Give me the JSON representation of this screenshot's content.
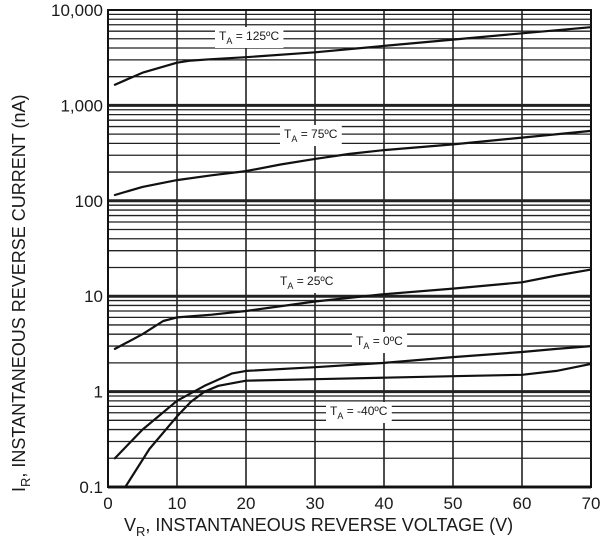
{
  "chart_data": {
    "type": "line",
    "xlabel_main": "V",
    "xlabel_sub": "R",
    "xlabel_rest": ", INSTANTANEOUS REVERSE VOLTAGE (V)",
    "ylabel_main": "I",
    "ylabel_sub": "R",
    "ylabel_rest": ", INSTANTANEOUS REVERSE CURRENT (nA)",
    "xlim": [
      0,
      70
    ],
    "ylim": [
      0.1,
      10000
    ],
    "yscale": "log",
    "grid": true,
    "x_ticks": [
      0,
      10,
      20,
      30,
      40,
      50,
      60,
      70
    ],
    "x_tick_labels": [
      "0",
      "10",
      "20",
      "30",
      "40",
      "50",
      "60",
      "70"
    ],
    "y_ticks": [
      0.1,
      1,
      10,
      100,
      1000,
      10000
    ],
    "y_tick_labels": [
      "0.1",
      "1",
      "10",
      "100",
      "1,000",
      "10,000"
    ],
    "series": [
      {
        "name": "125ºC",
        "label_prefix": "T",
        "label_sub": "A",
        "label_value": " = 125ºC",
        "x": [
          1,
          5,
          10,
          12,
          15,
          20,
          30,
          40,
          50,
          60,
          70
        ],
        "y": [
          1650,
          2200,
          2800,
          2950,
          3050,
          3200,
          3600,
          4200,
          4900,
          5700,
          6600
        ]
      },
      {
        "name": "75ºC",
        "label_prefix": "T",
        "label_sub": "A",
        "label_value": " = 75ºC",
        "x": [
          1,
          5,
          10,
          15,
          20,
          25,
          30,
          35,
          40,
          50,
          60,
          70
        ],
        "y": [
          115,
          140,
          165,
          185,
          205,
          240,
          275,
          310,
          340,
          390,
          460,
          540
        ]
      },
      {
        "name": "25ºC",
        "label_prefix": "T",
        "label_sub": "A",
        "label_value": " = 25ºC",
        "x": [
          1,
          5,
          8,
          10,
          15,
          20,
          30,
          40,
          50,
          60,
          65,
          70
        ],
        "y": [
          2.8,
          4.0,
          5.5,
          6.0,
          6.4,
          7.0,
          8.8,
          10.5,
          12.0,
          14.0,
          16.5,
          19.0
        ]
      },
      {
        "name": "0ºC",
        "label_prefix": "T",
        "label_sub": "A",
        "label_value": " = 0ºC",
        "x": [
          1,
          5,
          10,
          14,
          18,
          20,
          30,
          40,
          50,
          60,
          65,
          70
        ],
        "y": [
          0.2,
          0.4,
          0.8,
          1.15,
          1.55,
          1.65,
          1.8,
          2.0,
          2.3,
          2.6,
          2.8,
          3.0
        ]
      },
      {
        "name": "-40ºC",
        "label_prefix": "T",
        "label_sub": "A",
        "label_value": " = -40ºC",
        "x": [
          2.5,
          6,
          10,
          12,
          14,
          16,
          20,
          30,
          40,
          50,
          60,
          65,
          70
        ],
        "y": [
          0.1,
          0.25,
          0.55,
          0.78,
          1.0,
          1.15,
          1.3,
          1.35,
          1.4,
          1.45,
          1.5,
          1.65,
          1.95
        ]
      }
    ]
  }
}
